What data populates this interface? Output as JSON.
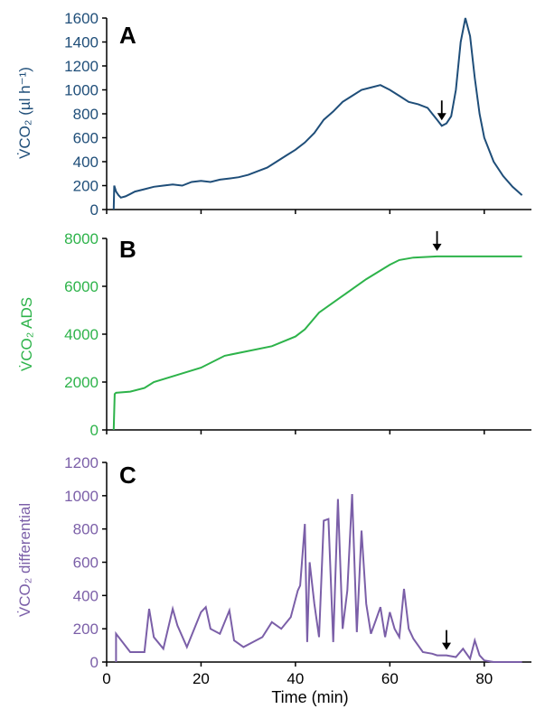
{
  "figure": {
    "x_axis_label": "Time (min)"
  },
  "chart_data": [
    {
      "panel_label": "A",
      "type": "line",
      "ylabel": "V̇CO₂ (µl h⁻¹)",
      "color": "#1f4e79",
      "xlim": [
        0,
        90
      ],
      "ylim": [
        0,
        1600
      ],
      "x_ticks": [
        0,
        20,
        40,
        60,
        80
      ],
      "y_ticks": [
        0,
        200,
        400,
        600,
        800,
        1000,
        1200,
        1400,
        1600
      ],
      "arrow_x": 71,
      "series": [
        {
          "x": [
            1.5,
            1.6,
            2,
            2.5,
            3,
            4,
            5,
            6,
            8,
            10,
            12,
            14,
            16,
            18,
            20,
            22,
            24,
            26,
            28,
            30,
            32,
            34,
            36,
            38,
            40,
            42,
            44,
            46,
            48,
            50,
            52,
            54,
            56,
            58,
            60,
            62,
            64,
            66,
            68,
            69,
            70,
            71,
            72,
            73,
            74,
            75,
            76,
            77,
            78,
            79,
            80,
            82,
            84,
            86,
            88
          ],
          "values": [
            0,
            200,
            150,
            120,
            100,
            110,
            130,
            150,
            170,
            190,
            200,
            210,
            200,
            230,
            240,
            230,
            250,
            260,
            270,
            290,
            320,
            350,
            400,
            450,
            500,
            560,
            640,
            750,
            820,
            900,
            950,
            1000,
            1020,
            1040,
            1000,
            950,
            900,
            880,
            850,
            800,
            750,
            700,
            720,
            780,
            1000,
            1400,
            1600,
            1450,
            1100,
            800,
            600,
            400,
            280,
            190,
            120
          ]
        }
      ]
    },
    {
      "panel_label": "B",
      "type": "line",
      "ylabel": "V̇CO₂ ADS",
      "color": "#2db34a",
      "xlim": [
        0,
        90
      ],
      "ylim": [
        0,
        8000
      ],
      "x_ticks": [
        0,
        20,
        40,
        60,
        80
      ],
      "y_ticks": [
        0,
        2000,
        4000,
        6000,
        8000
      ],
      "arrow_x": 70,
      "series": [
        {
          "x": [
            1.5,
            1.7,
            2,
            5,
            8,
            10,
            15,
            20,
            25,
            30,
            35,
            40,
            42,
            45,
            50,
            55,
            60,
            62,
            65,
            70,
            75,
            80,
            88
          ],
          "values": [
            0,
            1500,
            1550,
            1600,
            1750,
            2000,
            2300,
            2600,
            3100,
            3300,
            3500,
            3900,
            4200,
            4900,
            5600,
            6300,
            6900,
            7100,
            7200,
            7250,
            7250,
            7250,
            7250
          ]
        }
      ]
    },
    {
      "panel_label": "C",
      "type": "line",
      "ylabel": "V̇CO₂ differential",
      "color": "#7b5fa8",
      "xlim": [
        0,
        90
      ],
      "ylim": [
        0,
        1200
      ],
      "x_ticks": [
        0,
        20,
        40,
        60,
        80
      ],
      "y_ticks": [
        0,
        200,
        400,
        600,
        800,
        1000,
        1200
      ],
      "arrow_x": 72,
      "series": [
        {
          "x": [
            2,
            5,
            8,
            9,
            10,
            12,
            14,
            15,
            17,
            20,
            21,
            22,
            24,
            26,
            27,
            29,
            31,
            33,
            35,
            37,
            39,
            40.5,
            41,
            42,
            42.5,
            43,
            44,
            45,
            46,
            47,
            48,
            49,
            50,
            51,
            52,
            53,
            54,
            55,
            56,
            57,
            58,
            59,
            60,
            61,
            62,
            63,
            64,
            65,
            67,
            69,
            70,
            72,
            74,
            75.5,
            76,
            77,
            78,
            79,
            80,
            82,
            85,
            88
          ],
          "values": [
            170,
            60,
            60,
            320,
            150,
            80,
            320,
            220,
            90,
            300,
            330,
            200,
            170,
            310,
            130,
            90,
            120,
            150,
            240,
            200,
            270,
            430,
            460,
            830,
            120,
            600,
            350,
            150,
            850,
            860,
            120,
            980,
            200,
            430,
            1010,
            180,
            790,
            350,
            170,
            250,
            330,
            150,
            300,
            200,
            150,
            440,
            200,
            140,
            60,
            50,
            40,
            40,
            30,
            80,
            60,
            20,
            130,
            40,
            10,
            0,
            0,
            0
          ]
        }
      ]
    }
  ]
}
